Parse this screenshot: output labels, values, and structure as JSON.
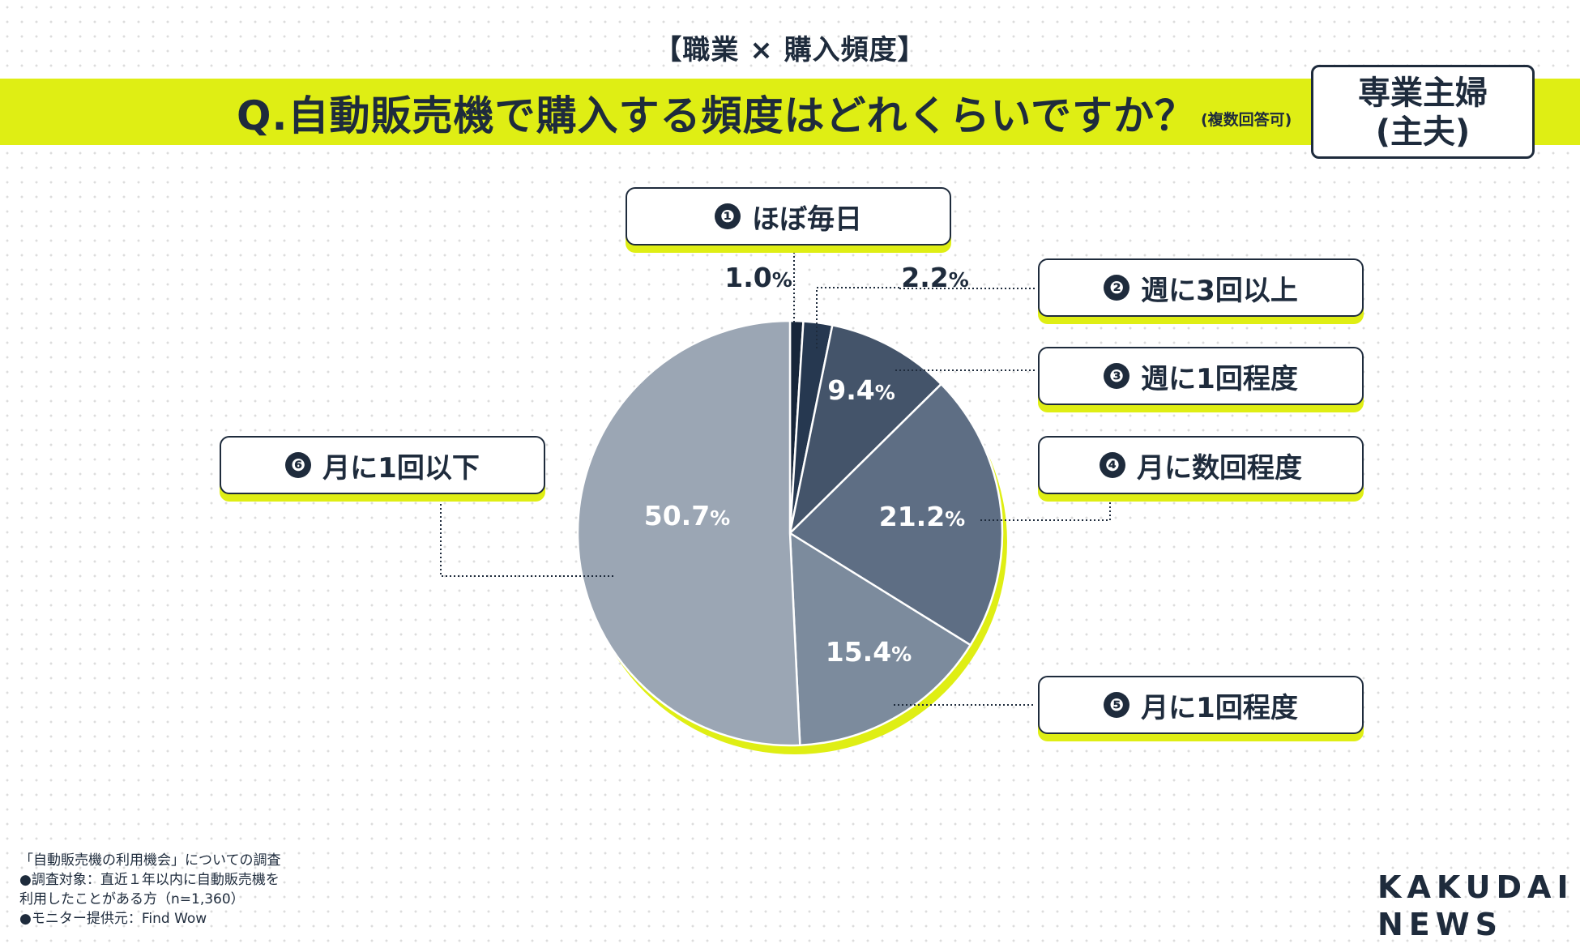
{
  "header": {
    "supertitle": "【職業 × 購入頻度】",
    "question": "Q.自動販売機で購入する頻度はどれくらいですか？",
    "question_note": "(複数回答可)",
    "segment_line1": "専業主婦",
    "segment_line2": "(主夫)"
  },
  "colors": {
    "accent": "#dfee14",
    "ink": "#1e2b3c",
    "slices": [
      "#17263a",
      "#263850",
      "#44546a",
      "#5e6e84",
      "#7c8b9d",
      "#9ba6b4"
    ]
  },
  "chart_data": {
    "type": "pie",
    "title": "Q.自動販売機で購入する頻度はどれくらいですか？",
    "categories": [
      "ほぼ毎日",
      "週に3回以上",
      "週に1回程度",
      "月に数回程度",
      "月に1回程度",
      "月に1回以下"
    ],
    "values": [
      1.0,
      2.2,
      9.4,
      21.2,
      15.4,
      50.7
    ],
    "markers": [
      "❶",
      "❷",
      "❸",
      "❹",
      "❺",
      "❻"
    ],
    "unit": "%",
    "value_labels": [
      {
        "main": "1.0",
        "unit": "%"
      },
      {
        "main": "2.2",
        "unit": "%"
      },
      {
        "main": "9.4",
        "unit": "%"
      },
      {
        "main": "21.2",
        "unit": "%"
      },
      {
        "main": "15.4",
        "unit": "%"
      },
      {
        "main": "50.7",
        "unit": "%"
      }
    ],
    "start_angle": "12 o'clock",
    "direction": "clockwise"
  },
  "footnote": {
    "line1": "「自動販売機の利用機会」についての調査",
    "line2": "●調査対象：直近１年以内に自動販売機を",
    "line3": "利用したことがある方（n=1,360）",
    "line4": "●モニター提供元：Find Wow"
  },
  "logo": {
    "line1": "KAKUDAI",
    "line2": "NEWS"
  }
}
